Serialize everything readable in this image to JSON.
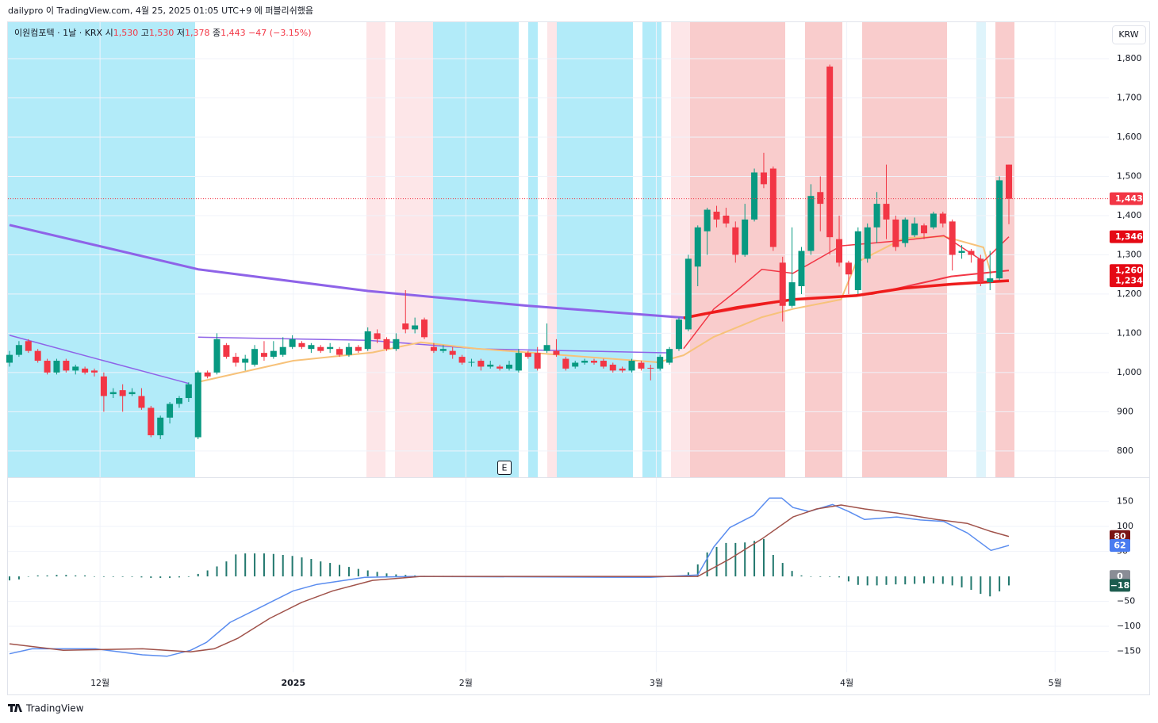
{
  "header": {
    "published": "dailypro 이 TradingView.com, 4월 25, 2025 01:05 UTC+9 에 퍼블리쉬했음",
    "symbol": "이원컴포텍 · 1날 · KRX",
    "open_label": "시",
    "open": "1,530",
    "high_label": "고",
    "high": "1,530",
    "low_label": "저",
    "low": "1,378",
    "close_label": "종",
    "close": "1,443",
    "change": "−47 (−3.15%)",
    "currency": "KRW",
    "earnings_marker": "E"
  },
  "footer": {
    "brand": "TradingView"
  },
  "chart_data": [
    {
      "type": "candlestick",
      "up_color": "#089981",
      "down_color": "#f23645",
      "xlim": [
        -0.17,
        116.6
      ],
      "ylim": [
        733,
        1893
      ],
      "grid": true,
      "yticks": [
        800,
        900,
        {
          "value": 1000,
          "label": "1,000"
        },
        {
          "value": 1100,
          "label": "1,100"
        },
        {
          "value": 1200,
          "label": "1,200"
        },
        {
          "value": 1300,
          "label": "1,300"
        },
        {
          "value": 1400,
          "label": "1,400"
        },
        {
          "value": 1500,
          "label": "1,500"
        },
        {
          "value": 1600,
          "label": "1,600"
        },
        {
          "value": 1700,
          "label": "1,700"
        },
        {
          "value": 1800,
          "label": "1,800"
        }
      ],
      "open": [
        1025,
        1045,
        1080,
        1055,
        1030,
        1000,
        1030,
        1005,
        1010,
        1005,
        990,
        945,
        955,
        945,
        940,
        910,
        840,
        885,
        920,
        935,
        835,
        1000,
        1000,
        1070,
        1040,
        1025,
        1020,
        1050,
        1040,
        1045,
        1065,
        1075,
        1060,
        1065,
        1060,
        1060,
        1045,
        1065,
        1060,
        1100,
        1085,
        1060,
        1125,
        1110,
        1135,
        1065,
        1055,
        1055,
        1040,
        1025,
        1030,
        1015,
        1015,
        1010,
        1005,
        1050,
        1050,
        1055,
        1055,
        1035,
        1015,
        1025,
        1030,
        1030,
        1020,
        1010,
        1005,
        1025,
        1012,
        1010,
        1025,
        1060,
        1110,
        1270,
        1360,
        1410,
        1400,
        1370,
        1300,
        1390,
        1510,
        1520,
        1280,
        1170,
        1220,
        1310,
        1460,
        1780,
        1340,
        1280,
        1210,
        1290,
        1370,
        1430,
        1390,
        1330,
        1350,
        1375,
        1370,
        1405,
        1385,
        1305,
        1310,
        1290,
        1230,
        1240,
        1530
      ],
      "high": [
        1055,
        1080,
        1085,
        1060,
        1035,
        1035,
        1035,
        1020,
        1015,
        1010,
        1000,
        960,
        970,
        960,
        960,
        915,
        890,
        925,
        940,
        975,
        1005,
        1005,
        1100,
        1075,
        1050,
        1045,
        1070,
        1080,
        1080,
        1090,
        1095,
        1080,
        1075,
        1070,
        1075,
        1065,
        1075,
        1070,
        1115,
        1110,
        1090,
        1100,
        1210,
        1140,
        1140,
        1075,
        1070,
        1065,
        1045,
        1035,
        1035,
        1030,
        1020,
        1030,
        1060,
        1055,
        1065,
        1125,
        1085,
        1040,
        1030,
        1035,
        1035,
        1035,
        1025,
        1015,
        1035,
        1030,
        1020,
        1045,
        1065,
        1140,
        1300,
        1375,
        1420,
        1425,
        1420,
        1385,
        1430,
        1520,
        1560,
        1525,
        1295,
        1370,
        1320,
        1480,
        1500,
        1785,
        1400,
        1285,
        1370,
        1380,
        1460,
        1530,
        1400,
        1395,
        1395,
        1380,
        1410,
        1410,
        1390,
        1325,
        1315,
        1300,
        1310,
        1500,
        1530
      ],
      "low": [
        1015,
        1040,
        1050,
        1025,
        995,
        995,
        1000,
        995,
        995,
        990,
        900,
        935,
        900,
        940,
        905,
        835,
        830,
        870,
        910,
        925,
        830,
        985,
        995,
        1035,
        1015,
        1005,
        1015,
        1030,
        1035,
        1040,
        1060,
        1060,
        1050,
        1050,
        1050,
        1040,
        1040,
        1050,
        1055,
        1075,
        1055,
        1055,
        1100,
        1100,
        1085,
        1050,
        1050,
        1035,
        1020,
        1015,
        1005,
        1010,
        1005,
        1005,
        1000,
        1035,
        1005,
        1050,
        1040,
        1005,
        1010,
        1020,
        1020,
        1010,
        1000,
        1000,
        1000,
        1005,
        980,
        1005,
        1020,
        1055,
        1105,
        1220,
        1300,
        1370,
        1370,
        1280,
        1295,
        1385,
        1470,
        1310,
        1130,
        1165,
        1200,
        1300,
        1360,
        1300,
        1270,
        1200,
        1200,
        1280,
        1330,
        1340,
        1310,
        1320,
        1345,
        1340,
        1365,
        1370,
        1260,
        1290,
        1280,
        1220,
        1210,
        1235,
        1378
      ],
      "close": [
        1045,
        1070,
        1055,
        1030,
        1000,
        1030,
        1005,
        1015,
        1000,
        1000,
        940,
        950,
        940,
        950,
        910,
        840,
        885,
        920,
        935,
        970,
        1000,
        990,
        1085,
        1040,
        1025,
        1035,
        1060,
        1040,
        1055,
        1065,
        1085,
        1065,
        1070,
        1055,
        1065,
        1045,
        1065,
        1055,
        1105,
        1085,
        1060,
        1085,
        1110,
        1120,
        1090,
        1055,
        1060,
        1045,
        1025,
        1027,
        1015,
        1020,
        1010,
        1020,
        1050,
        1040,
        1010,
        1070,
        1045,
        1010,
        1025,
        1030,
        1025,
        1015,
        1005,
        1005,
        1030,
        1010,
        1010,
        1040,
        1060,
        1135,
        1290,
        1370,
        1415,
        1390,
        1380,
        1300,
        1390,
        1510,
        1480,
        1320,
        1170,
        1230,
        1310,
        1450,
        1430,
        1345,
        1280,
        1250,
        1360,
        1370,
        1430,
        1390,
        1320,
        1390,
        1380,
        1355,
        1405,
        1380,
        1300,
        1310,
        1300,
        1230,
        1240,
        1490,
        1443
      ],
      "series": [
        {
          "color": "#8e63e8",
          "width": 3,
          "x": [
            0,
            20,
            38,
            55,
            72
          ],
          "values": [
            1376,
            1263,
            1208,
            1170,
            1139
          ]
        },
        {
          "color": "#8e63e8",
          "width": 1.5,
          "x": [
            0,
            10,
            19,
            20,
            20,
            38,
            50,
            70
          ],
          "values": [
            1095,
            1030,
            972,
            null,
            1090,
            1082,
            1060,
            1050
          ]
        },
        {
          "color": "#f7c27a",
          "width": 2,
          "x": [
            19.7,
            30.1,
            38.5,
            43.6,
            49.5,
            68.8,
            71.5,
            74.7,
            79.8,
            83.1,
            88.2,
            89.8,
            94.9,
            99.1,
            103.3,
            104.1
          ],
          "values": [
            974,
            1030,
            1051,
            1077,
            1061,
            1026,
            1044,
            1091,
            1141,
            1162,
            1186,
            1280,
            1343,
            1347,
            1319,
            1252
          ]
        },
        {
          "color": "#f23645",
          "width": 1.5,
          "x": [
            71.5,
            74.7,
            77.2,
            79.8,
            83.1,
            88.2,
            94.9,
            99.1,
            103.3,
            106
          ],
          "values": [
            1061,
            1162,
            1210,
            1263,
            1253,
            1323,
            1337,
            1349,
            1283,
            1346
          ]
        },
        {
          "color": "#f23645",
          "width": 2,
          "x": [
            71.5,
            83.1,
            91.5,
            99.9,
            106
          ],
          "values": [
            1139,
            1186,
            1200,
            1245,
            1260
          ]
        },
        {
          "color": "#ee1c1c",
          "width": 3.5,
          "x": [
            71.5,
            77.2,
            83.1,
            89.8,
            94.9,
            99.9,
            106
          ],
          "values": [
            1139,
            1166,
            1186,
            1196,
            1215,
            1225,
            1234
          ]
        }
      ],
      "price_labels": [
        {
          "value": 1443,
          "label": "1,443",
          "color": "#f23645",
          "dotted": true
        },
        {
          "value": 1346,
          "label": "1,346",
          "color": "#e50914"
        },
        {
          "value": 1260,
          "label": "1,260",
          "color": "#e50914"
        },
        {
          "value": 1234,
          "label": "1,234",
          "color": "#e50914"
        }
      ]
    },
    {
      "type": "macd",
      "xlim": [
        -0.17,
        116.6
      ],
      "ylim": [
        -192,
        197
      ],
      "grid": true,
      "xticks": [
        {
          "value": 9.6,
          "label": "12월"
        },
        {
          "value": 30.1,
          "label": "2025"
        },
        {
          "value": 48.4,
          "label": "2월"
        },
        {
          "value": 68.6,
          "label": "3월"
        },
        {
          "value": 88.8,
          "label": "4월"
        },
        {
          "value": 110.9,
          "label": "5월"
        }
      ],
      "yticks": [
        150,
        100,
        50,
        {
          "value": -50,
          "label": "−50"
        },
        {
          "value": -100,
          "label": "−100"
        },
        {
          "value": -150,
          "label": "−150"
        }
      ],
      "histogram": {
        "color": "#22786e",
        "values": [
          -8,
          -6,
          0,
          2,
          2,
          3,
          3,
          2,
          2,
          0,
          -1,
          -1,
          -1,
          -1,
          -2,
          -3,
          -3,
          -3,
          -2,
          -1,
          5,
          12,
          20,
          30,
          44,
          46,
          46,
          46,
          45,
          43,
          41,
          38,
          35,
          30,
          27,
          23,
          19,
          15,
          12,
          9,
          6,
          4,
          3,
          2,
          1,
          1,
          1,
          1,
          0,
          0,
          0,
          0,
          0,
          0,
          0,
          0,
          0,
          0,
          0,
          0,
          0,
          0,
          0,
          0,
          0,
          0,
          0,
          -1,
          -1,
          -1,
          0,
          1,
          8,
          24,
          48,
          59,
          67,
          67,
          68,
          71,
          75,
          43,
          27,
          11,
          2,
          0,
          -1,
          -1,
          -2,
          -10,
          -17,
          -18,
          -18,
          -17,
          -16,
          -16,
          -15,
          -14,
          -14,
          -15,
          -18,
          -22,
          -27,
          -35,
          -40,
          -30,
          -18
        ]
      },
      "series": [
        {
          "color": "#5b8def",
          "width": 1.5,
          "x": [
            0,
            2.4,
            9.1,
            14.1,
            16.7,
            19.2,
            20.9,
            23.4,
            26.8,
            30.1,
            32.6,
            37.7,
            42.7,
            68,
            73,
            74.7,
            76.4,
            78.9,
            80.6,
            81.9,
            83.1,
            84.8,
            87.3,
            89,
            90.7,
            94.1,
            96.6,
            99.1,
            101.6,
            104.1,
            106
          ],
          "values": [
            -155,
            -145,
            -145,
            -157,
            -160,
            -148,
            -132,
            -92,
            -60,
            -29,
            -16,
            -2,
            0,
            -2,
            3,
            59,
            98,
            122,
            157,
            157,
            138,
            130,
            144,
            130,
            114,
            119,
            113,
            110,
            87,
            52,
            62
          ]
        },
        {
          "color": "#a0524a",
          "width": 1.5,
          "x": [
            0,
            5.7,
            14.1,
            19.2,
            21.7,
            24.2,
            27.6,
            31,
            34.3,
            38.5,
            43.6,
            73,
            76.4,
            79.8,
            83.1,
            85.6,
            88.2,
            90.7,
            94.1,
            98.3,
            101.6,
            104.1,
            106
          ],
          "values": [
            -135,
            -148,
            -145,
            -151,
            -145,
            -124,
            -84,
            -52,
            -29,
            -8,
            0,
            0,
            35,
            75,
            119,
            135,
            143,
            135,
            127,
            114,
            106,
            90,
            80
          ]
        }
      ],
      "value_labels": [
        {
          "value": 80,
          "color": "#7a1414"
        },
        {
          "value": 62,
          "color": "#4a7cf0"
        },
        {
          "value": 0,
          "color": "#8a8d96"
        },
        {
          "value": -18,
          "label": "−18",
          "color": "#1d5c4f"
        }
      ]
    }
  ]
}
